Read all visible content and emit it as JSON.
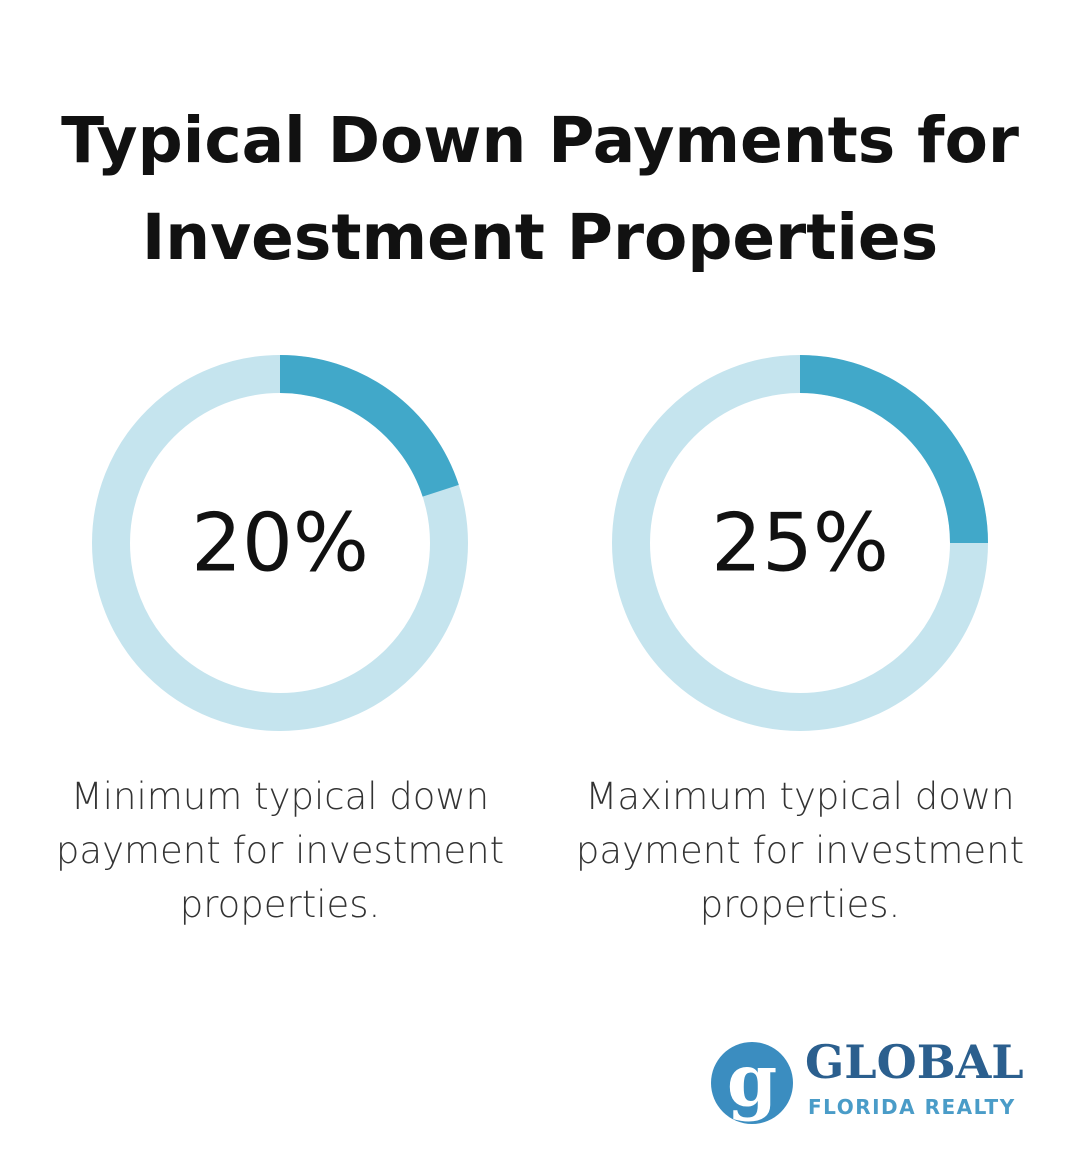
{
  "title": "Typical Down Payments for Investment Properties",
  "chart_data": [
    {
      "type": "donut",
      "values": [
        20
      ],
      "value_labels": [
        "20%"
      ],
      "ylim": [
        0,
        100
      ],
      "color": "#41a8c9",
      "track_color": "#c5e4ee",
      "caption": "Minimum typical down payment for investment properties."
    },
    {
      "type": "donut",
      "values": [
        25
      ],
      "value_labels": [
        "25%"
      ],
      "ylim": [
        0,
        100
      ],
      "color": "#41a8c9",
      "track_color": "#c5e4ee",
      "caption": "Maximum typical down payment for investment properties."
    }
  ],
  "logo": {
    "mark": "g",
    "name": "GLOBAL",
    "tagline": "FLORIDA REALTY"
  }
}
